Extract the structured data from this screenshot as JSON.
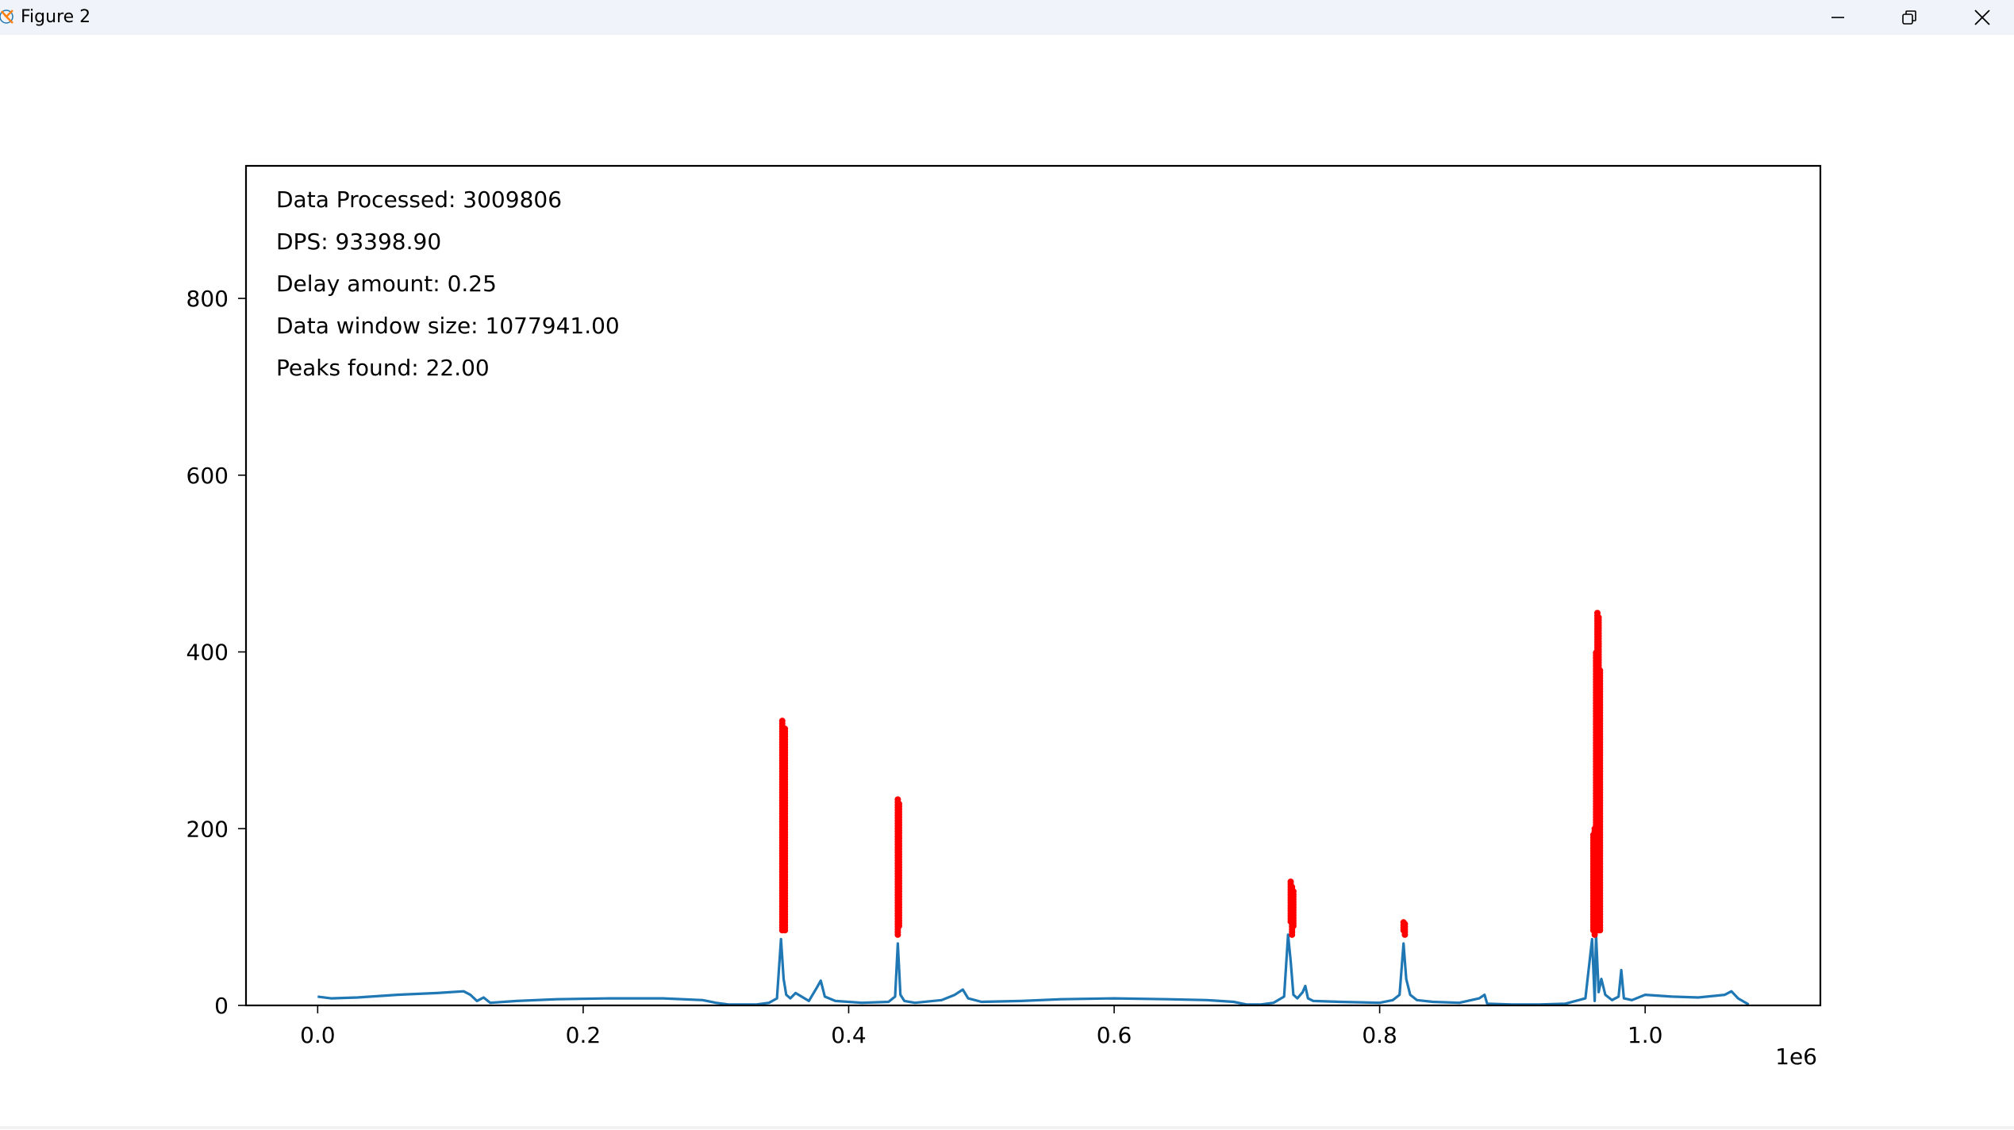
{
  "window": {
    "title": "Figure 2",
    "icon": "matplotlib-icon",
    "controls": [
      "minimize-icon",
      "restore-icon",
      "close-icon"
    ]
  },
  "colors": {
    "line": "#1f77b4",
    "peaks": "#ff0000",
    "titlebar": "#f0f3f9"
  },
  "chart_data": {
    "type": "line",
    "title": "",
    "xlabel": "",
    "ylabel": "",
    "x_offset_label": "1e6",
    "xlim": [
      -0.054,
      1.132
    ],
    "ylim": [
      0,
      950
    ],
    "xticks": [
      0.0,
      0.2,
      0.4,
      0.6,
      0.8,
      1.0
    ],
    "xtick_labels": [
      "0.0",
      "0.2",
      "0.4",
      "0.6",
      "0.8",
      "1.0"
    ],
    "yticks": [
      0,
      200,
      400,
      600,
      800
    ],
    "ytick_labels": [
      "0",
      "200",
      "400",
      "600",
      "800"
    ],
    "grid": false,
    "annotations": [
      "Data Processed: 3009806",
      "DPS: 93398.90",
      "Delay amount: 0.25",
      "Data window size: 1077941.00",
      "Peaks found: 22.00"
    ],
    "series": [
      {
        "type": "line",
        "x": [
          0.0,
          0.01,
          0.03,
          0.06,
          0.09,
          0.11,
          0.115,
          0.12,
          0.125,
          0.13,
          0.15,
          0.18,
          0.22,
          0.26,
          0.29,
          0.3,
          0.31,
          0.33,
          0.34,
          0.346,
          0.349,
          0.351,
          0.353,
          0.356,
          0.36,
          0.37,
          0.376,
          0.379,
          0.382,
          0.39,
          0.41,
          0.43,
          0.435,
          0.437,
          0.439,
          0.442,
          0.45,
          0.47,
          0.48,
          0.486,
          0.49,
          0.5,
          0.53,
          0.56,
          0.6,
          0.64,
          0.67,
          0.69,
          0.7,
          0.71,
          0.72,
          0.728,
          0.731,
          0.733,
          0.735,
          0.738,
          0.742,
          0.744,
          0.746,
          0.75,
          0.77,
          0.8,
          0.81,
          0.815,
          0.818,
          0.82,
          0.823,
          0.828,
          0.84,
          0.86,
          0.875,
          0.879,
          0.881,
          0.9,
          0.92,
          0.94,
          0.955,
          0.96,
          0.962,
          0.963,
          0.965,
          0.967,
          0.97,
          0.975,
          0.98,
          0.982,
          0.984,
          0.99,
          1.0,
          1.02,
          1.04,
          1.06,
          1.065,
          1.07,
          1.078
        ],
        "y": [
          10,
          8,
          9,
          12,
          14,
          16,
          12,
          5,
          9,
          3,
          5,
          7,
          8,
          8,
          6,
          3,
          1,
          1,
          3,
          8,
          75,
          30,
          12,
          8,
          14,
          5,
          20,
          28,
          10,
          5,
          3,
          4,
          10,
          70,
          12,
          5,
          3,
          6,
          12,
          18,
          8,
          4,
          5,
          7,
          8,
          7,
          6,
          4,
          1,
          1,
          3,
          10,
          80,
          50,
          12,
          8,
          15,
          22,
          8,
          5,
          4,
          3,
          6,
          12,
          70,
          30,
          12,
          6,
          4,
          3,
          8,
          12,
          2,
          1,
          1,
          2,
          8,
          75,
          5,
          80,
          15,
          30,
          12,
          6,
          10,
          40,
          8,
          6,
          12,
          10,
          9,
          12,
          16,
          8,
          1
        ]
      },
      {
        "type": "scatter",
        "x": [
          0.35,
          0.352,
          0.437,
          0.438,
          0.733,
          0.734,
          0.735,
          0.818,
          0.819,
          0.961,
          0.962,
          0.963,
          0.964,
          0.965,
          0.966
        ],
        "y": [
          [
            85,
            322
          ],
          [
            85,
            315
          ],
          [
            80,
            235
          ],
          [
            90,
            230
          ],
          [
            95,
            140
          ],
          [
            80,
            135
          ],
          [
            90,
            130
          ],
          [
            85,
            95
          ],
          [
            80,
            92
          ],
          [
            85,
            195
          ],
          [
            80,
            200
          ],
          [
            90,
            400
          ],
          [
            90,
            445
          ],
          [
            85,
            440
          ],
          [
            85,
            380
          ]
        ]
      }
    ]
  }
}
